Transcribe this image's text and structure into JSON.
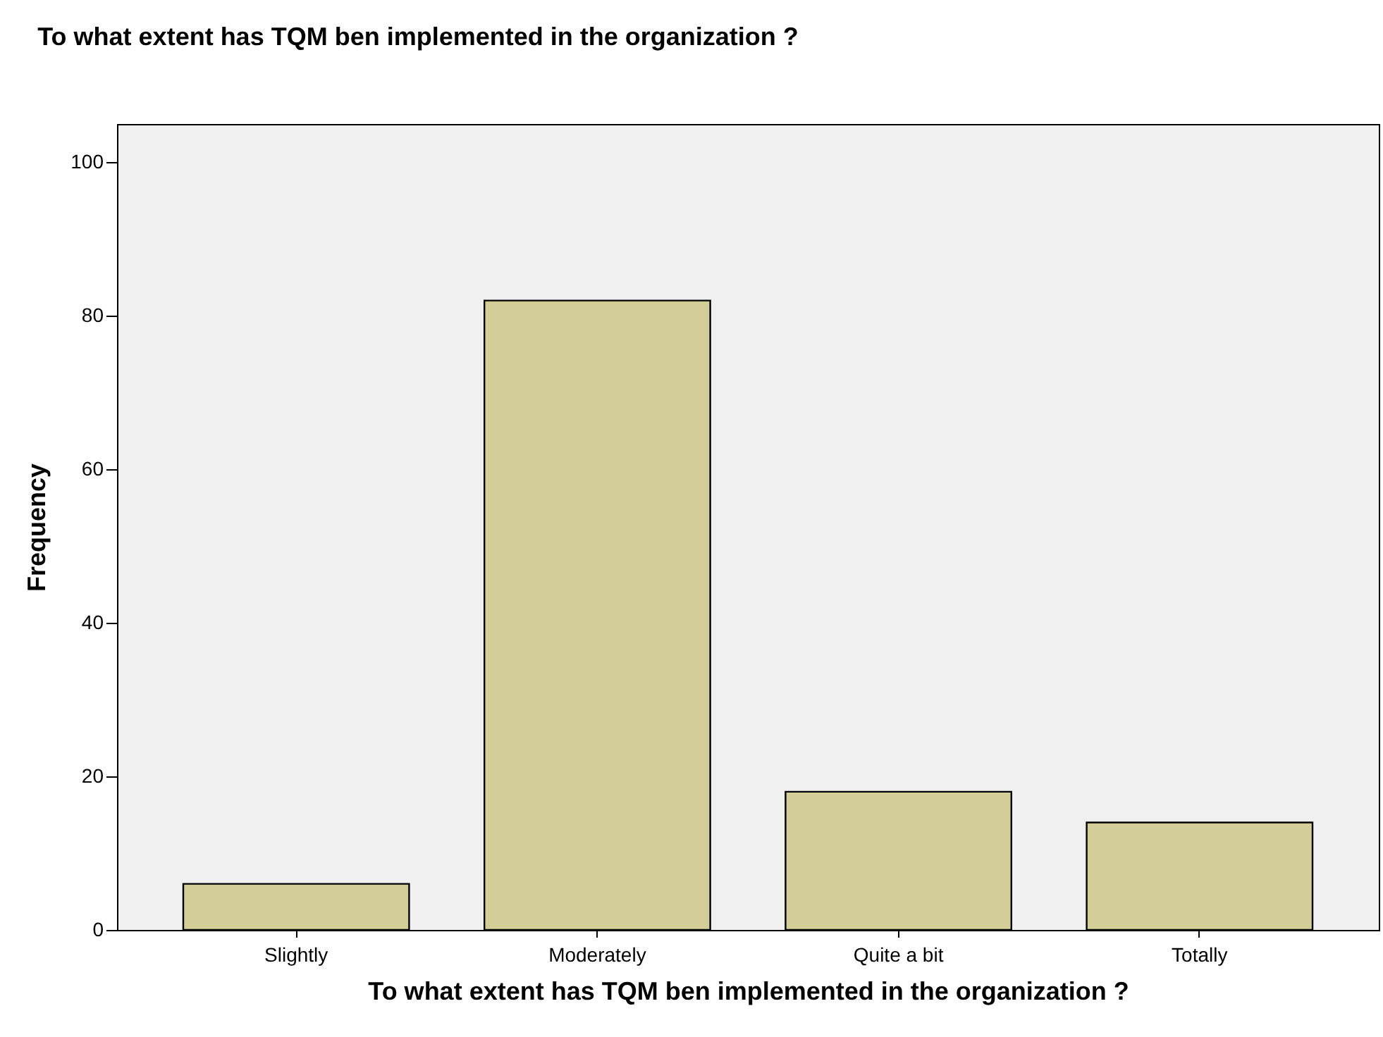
{
  "chart_data": {
    "type": "bar",
    "title": "To what extent has TQM ben implemented in the organization ?",
    "xlabel": "To what extent has TQM ben implemented in the organization ?",
    "ylabel": "Frequency",
    "categories": [
      "Slightly",
      "Moderately",
      "Quite a bit",
      "Totally"
    ],
    "values": [
      6,
      82,
      18,
      14
    ],
    "color": "#d3ce97",
    "ylim": [
      0,
      105
    ],
    "yticks": [
      0,
      20,
      40,
      60,
      80,
      100
    ],
    "grid": false
  }
}
